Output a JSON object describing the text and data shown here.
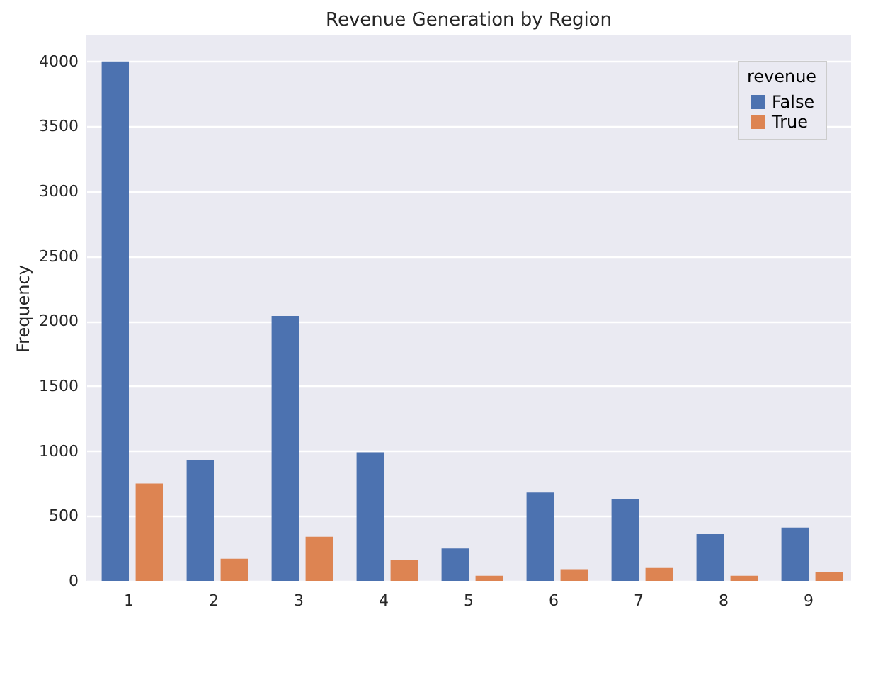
{
  "chart_data": {
    "type": "bar",
    "title": "Revenue Generation by Region",
    "ylabel": "Frequency",
    "legend_title": "revenue",
    "categories": [
      "1",
      "2",
      "3",
      "4",
      "5",
      "6",
      "7",
      "8",
      "9"
    ],
    "series": [
      {
        "name": "False",
        "color": "#4c72b0",
        "values": [
          4000,
          930,
          2040,
          990,
          250,
          680,
          630,
          360,
          410
        ]
      },
      {
        "name": "True",
        "color": "#dd8452",
        "values": [
          750,
          170,
          340,
          160,
          40,
          90,
          100,
          40,
          70
        ]
      }
    ],
    "ylim": [
      0,
      4200
    ],
    "yticks": [
      0,
      500,
      1000,
      1500,
      2000,
      2500,
      3000,
      3500,
      4000
    ],
    "grid": "y",
    "legend": "top right"
  }
}
